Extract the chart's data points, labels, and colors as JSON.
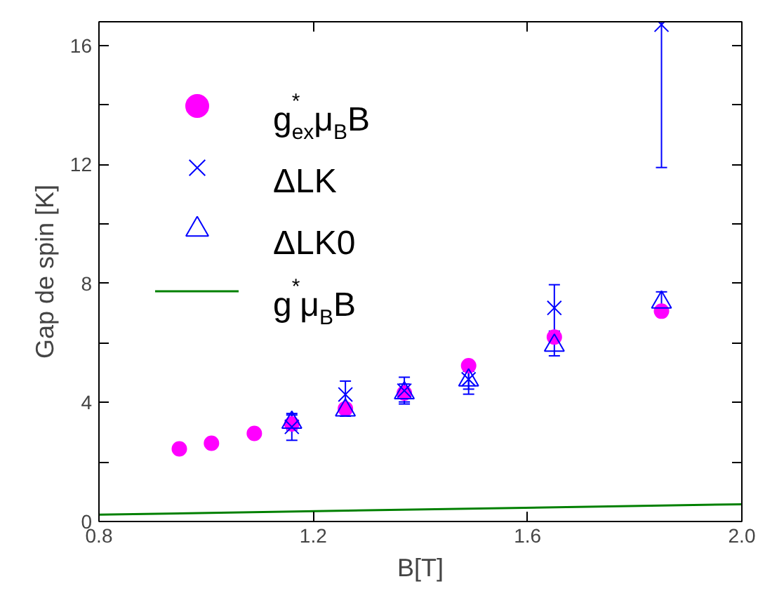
{
  "chart_data": {
    "type": "scatter",
    "xlabel": "B[T]",
    "ylabel": "Gap de spin [K]",
    "xlim": [
      0.8,
      2.0
    ],
    "xticks": [
      0.8,
      1.2,
      1.6,
      {
        "value": 2.0,
        "label": "2.0"
      }
    ],
    "ylim": [
      0,
      16.8
    ],
    "yticks": [
      0,
      {
        "value": 2,
        "label": null
      },
      4,
      {
        "value": 6,
        "label": null
      },
      8,
      {
        "value": 10,
        "label": null
      },
      12,
      {
        "value": 14,
        "label": null
      },
      16
    ],
    "grid": false,
    "legend": "top left",
    "series": [
      {
        "name": "g$^{*}$$_{ex}$μ$_{B}$B",
        "color": "#ff00ff",
        "marker": "circle",
        "x": [
          0.95,
          1.01,
          1.09,
          1.16,
          1.26,
          1.37,
          1.49,
          1.65,
          1.85
        ],
        "values": [
          2.44,
          2.63,
          2.96,
          3.28,
          3.79,
          4.32,
          5.24,
          6.2,
          7.07
        ]
      },
      {
        "name": "ΔLK",
        "color": "#0000ff",
        "marker": "cross",
        "x": [
          1.16,
          1.26,
          1.37,
          1.49,
          1.65,
          1.85
        ],
        "values": [
          3.18,
          4.27,
          4.4,
          4.78,
          7.18,
          16.7
        ],
        "errors": [
          0.45,
          0.45,
          0.45,
          0.5,
          0.78,
          [
            11.9,
            16.8
          ]
        ]
      },
      {
        "name": "ΔLK0",
        "color": "#0000ff",
        "marker": "triangle",
        "x": [
          1.16,
          1.26,
          1.37,
          1.49,
          1.65,
          1.85
        ],
        "values": [
          3.33,
          3.74,
          4.32,
          4.75,
          5.92,
          7.37
        ],
        "errors": [
          0.25,
          0.2,
          0.3,
          0.3,
          0.35,
          0.35
        ]
      },
      {
        "name": "g$^{*}$μ$_{B}$B",
        "type": "line",
        "color": "#008000",
        "marker": "none",
        "x": [
          0.8,
          2.0
        ],
        "values": [
          0.23,
          0.58
        ]
      }
    ]
  }
}
